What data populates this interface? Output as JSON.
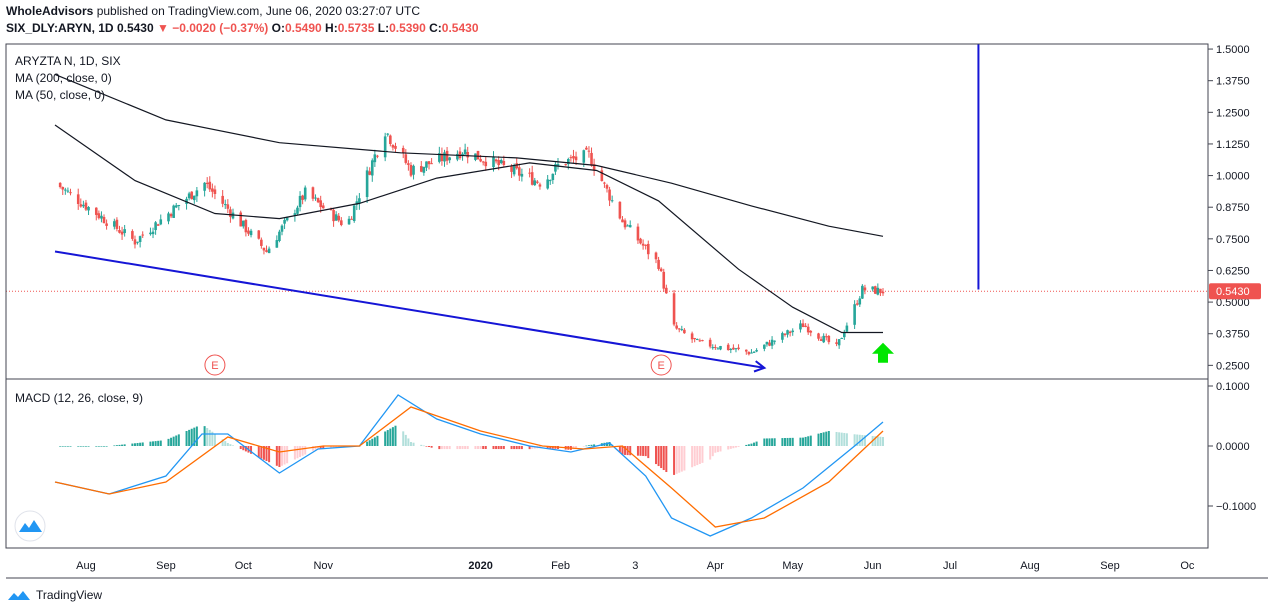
{
  "header": {
    "publisher": "WholeAdvisors",
    "published_text": "published on TradingView.com, June 06, 2020 03:27:07 UTC",
    "symbol_line": "SIX_DLY:ARYN, 1D",
    "last": "0.5430",
    "change": "−0.0020 (−0.37%)",
    "o_label": "O:",
    "o": "0.5490",
    "h_label": "H:",
    "h": "0.5735",
    "l_label": "L:",
    "l": "0.5390",
    "c_label": "C:",
    "c": "0.5430"
  },
  "legend": {
    "title": "ARYZTA N, 1D, SIX",
    "ma200": "MA (200, close, 0)",
    "ma50": "MA (50, close, 0)",
    "macd": "MACD (12, 26, close, 9)"
  },
  "footer": {
    "brand": "TradingView"
  },
  "colors": {
    "up": "#26a69a",
    "down": "#ef5350",
    "ma": "#131722",
    "trendline": "#1515d6",
    "macd_line": "#2196f3",
    "signal_line": "#ff6d00",
    "arrow": "#00e600",
    "last_price_label": "#ef5350"
  },
  "chart_data": [
    {
      "type": "candlestick",
      "title": "ARYZTA N, 1D, SIX",
      "price_axis_ticks": [
        "1.5000",
        "1.3750",
        "1.2500",
        "1.1250",
        "1.0000",
        "0.8750",
        "0.7500",
        "0.6250",
        "0.5000",
        "0.3750",
        "0.2500"
      ],
      "ylim": [
        0.2,
        1.52
      ],
      "last_price_label": "0.5430",
      "x_ticks": [
        "Aug",
        "Sep",
        "Oct",
        "Nov",
        "2020",
        "Feb",
        "3",
        "Apr",
        "May",
        "Jun",
        "Jul",
        "Aug",
        "Sep",
        "Oc"
      ],
      "earnings_markers": [
        "E",
        "E"
      ],
      "key_points": [
        {
          "date": "2019-07-20",
          "close": 0.97
        },
        {
          "date": "2019-08-20",
          "close": 0.74
        },
        {
          "date": "2019-09-16",
          "close": 0.97
        },
        {
          "date": "2019-10-10",
          "close": 0.7
        },
        {
          "date": "2019-10-25",
          "close": 0.93
        },
        {
          "date": "2019-11-10",
          "close": 0.8
        },
        {
          "date": "2019-11-25",
          "close": 1.18
        },
        {
          "date": "2019-12-05",
          "close": 1.02
        },
        {
          "date": "2019-12-25",
          "close": 1.1
        },
        {
          "date": "2020-01-25",
          "close": 0.97
        },
        {
          "date": "2020-02-01",
          "close": 1.05
        },
        {
          "date": "2020-02-12",
          "close": 1.08
        },
        {
          "date": "2020-02-25",
          "close": 0.82
        },
        {
          "date": "2020-03-10",
          "close": 0.65
        },
        {
          "date": "2020-03-16",
          "close": 0.4
        },
        {
          "date": "2020-03-25",
          "close": 0.34
        },
        {
          "date": "2020-04-15",
          "close": 0.3
        },
        {
          "date": "2020-05-05",
          "close": 0.41
        },
        {
          "date": "2020-05-18",
          "close": 0.32
        },
        {
          "date": "2020-05-28",
          "close": 0.55
        },
        {
          "date": "2020-06-05",
          "close": 0.543
        }
      ],
      "ma200": [
        {
          "date": "2019-07-20",
          "value": 1.4
        },
        {
          "date": "2019-09-01",
          "value": 1.22
        },
        {
          "date": "2019-10-15",
          "value": 1.13
        },
        {
          "date": "2019-12-01",
          "value": 1.09
        },
        {
          "date": "2020-01-15",
          "value": 1.07
        },
        {
          "date": "2020-02-15",
          "value": 1.04
        },
        {
          "date": "2020-03-15",
          "value": 0.97
        },
        {
          "date": "2020-04-15",
          "value": 0.88
        },
        {
          "date": "2020-05-15",
          "value": 0.8
        },
        {
          "date": "2020-06-05",
          "value": 0.76
        }
      ],
      "ma50": [
        {
          "date": "2019-07-20",
          "value": 1.2
        },
        {
          "date": "2019-08-20",
          "value": 0.98
        },
        {
          "date": "2019-09-20",
          "value": 0.85
        },
        {
          "date": "2019-10-15",
          "value": 0.83
        },
        {
          "date": "2019-11-15",
          "value": 0.89
        },
        {
          "date": "2019-12-15",
          "value": 0.99
        },
        {
          "date": "2020-01-20",
          "value": 1.05
        },
        {
          "date": "2020-02-15",
          "value": 1.02
        },
        {
          "date": "2020-03-10",
          "value": 0.9
        },
        {
          "date": "2020-04-10",
          "value": 0.63
        },
        {
          "date": "2020-05-01",
          "value": 0.48
        },
        {
          "date": "2020-05-20",
          "value": 0.38
        },
        {
          "date": "2020-06-05",
          "value": 0.38
        }
      ],
      "annotations": [
        {
          "kind": "trendline",
          "from": {
            "date": "2019-07-20",
            "value": 0.7
          },
          "to": {
            "date": "2020-04-20",
            "value": 0.24
          }
        },
        {
          "kind": "vertical_line",
          "date": "2020-07-12",
          "from": 0.55,
          "to": 1.52
        },
        {
          "kind": "up_arrow",
          "date": "2020-06-05",
          "value": 0.3
        }
      ]
    },
    {
      "type": "macd",
      "title": "MACD (12, 26, close, 9)",
      "axis_ticks": [
        "0.1000",
        "0.0000",
        "−0.1000"
      ],
      "ylim": [
        -0.17,
        0.11
      ],
      "macd": [
        {
          "date": "2019-07-20",
          "value": -0.06
        },
        {
          "date": "2019-08-10",
          "value": -0.08
        },
        {
          "date": "2019-09-01",
          "value": -0.05
        },
        {
          "date": "2019-09-15",
          "value": 0.02
        },
        {
          "date": "2019-09-25",
          "value": 0.02
        },
        {
          "date": "2019-10-15",
          "value": -0.045
        },
        {
          "date": "2019-10-30",
          "value": -0.005
        },
        {
          "date": "2019-11-15",
          "value": 0.0
        },
        {
          "date": "2019-11-30",
          "value": 0.085
        },
        {
          "date": "2019-12-15",
          "value": 0.045
        },
        {
          "date": "2020-01-01",
          "value": 0.02
        },
        {
          "date": "2020-01-20",
          "value": 0.0
        },
        {
          "date": "2020-02-05",
          "value": -0.01
        },
        {
          "date": "2020-02-20",
          "value": 0.005
        },
        {
          "date": "2020-03-05",
          "value": -0.05
        },
        {
          "date": "2020-03-15",
          "value": -0.12
        },
        {
          "date": "2020-03-30",
          "value": -0.15
        },
        {
          "date": "2020-04-15",
          "value": -0.12
        },
        {
          "date": "2020-05-05",
          "value": -0.07
        },
        {
          "date": "2020-05-25",
          "value": 0.0
        },
        {
          "date": "2020-06-05",
          "value": 0.04
        }
      ],
      "signal": [
        {
          "date": "2019-07-20",
          "value": -0.06
        },
        {
          "date": "2019-08-10",
          "value": -0.08
        },
        {
          "date": "2019-09-01",
          "value": -0.06
        },
        {
          "date": "2019-09-25",
          "value": 0.015
        },
        {
          "date": "2019-10-15",
          "value": -0.01
        },
        {
          "date": "2019-11-01",
          "value": 0.0
        },
        {
          "date": "2019-11-15",
          "value": 0.0
        },
        {
          "date": "2019-12-05",
          "value": 0.065
        },
        {
          "date": "2020-01-01",
          "value": 0.025
        },
        {
          "date": "2020-01-25",
          "value": 0.0
        },
        {
          "date": "2020-02-10",
          "value": -0.005
        },
        {
          "date": "2020-02-25",
          "value": 0.0
        },
        {
          "date": "2020-03-15",
          "value": -0.07
        },
        {
          "date": "2020-04-01",
          "value": -0.135
        },
        {
          "date": "2020-04-20",
          "value": -0.12
        },
        {
          "date": "2020-05-15",
          "value": -0.06
        },
        {
          "date": "2020-06-05",
          "value": 0.025
        }
      ]
    }
  ]
}
